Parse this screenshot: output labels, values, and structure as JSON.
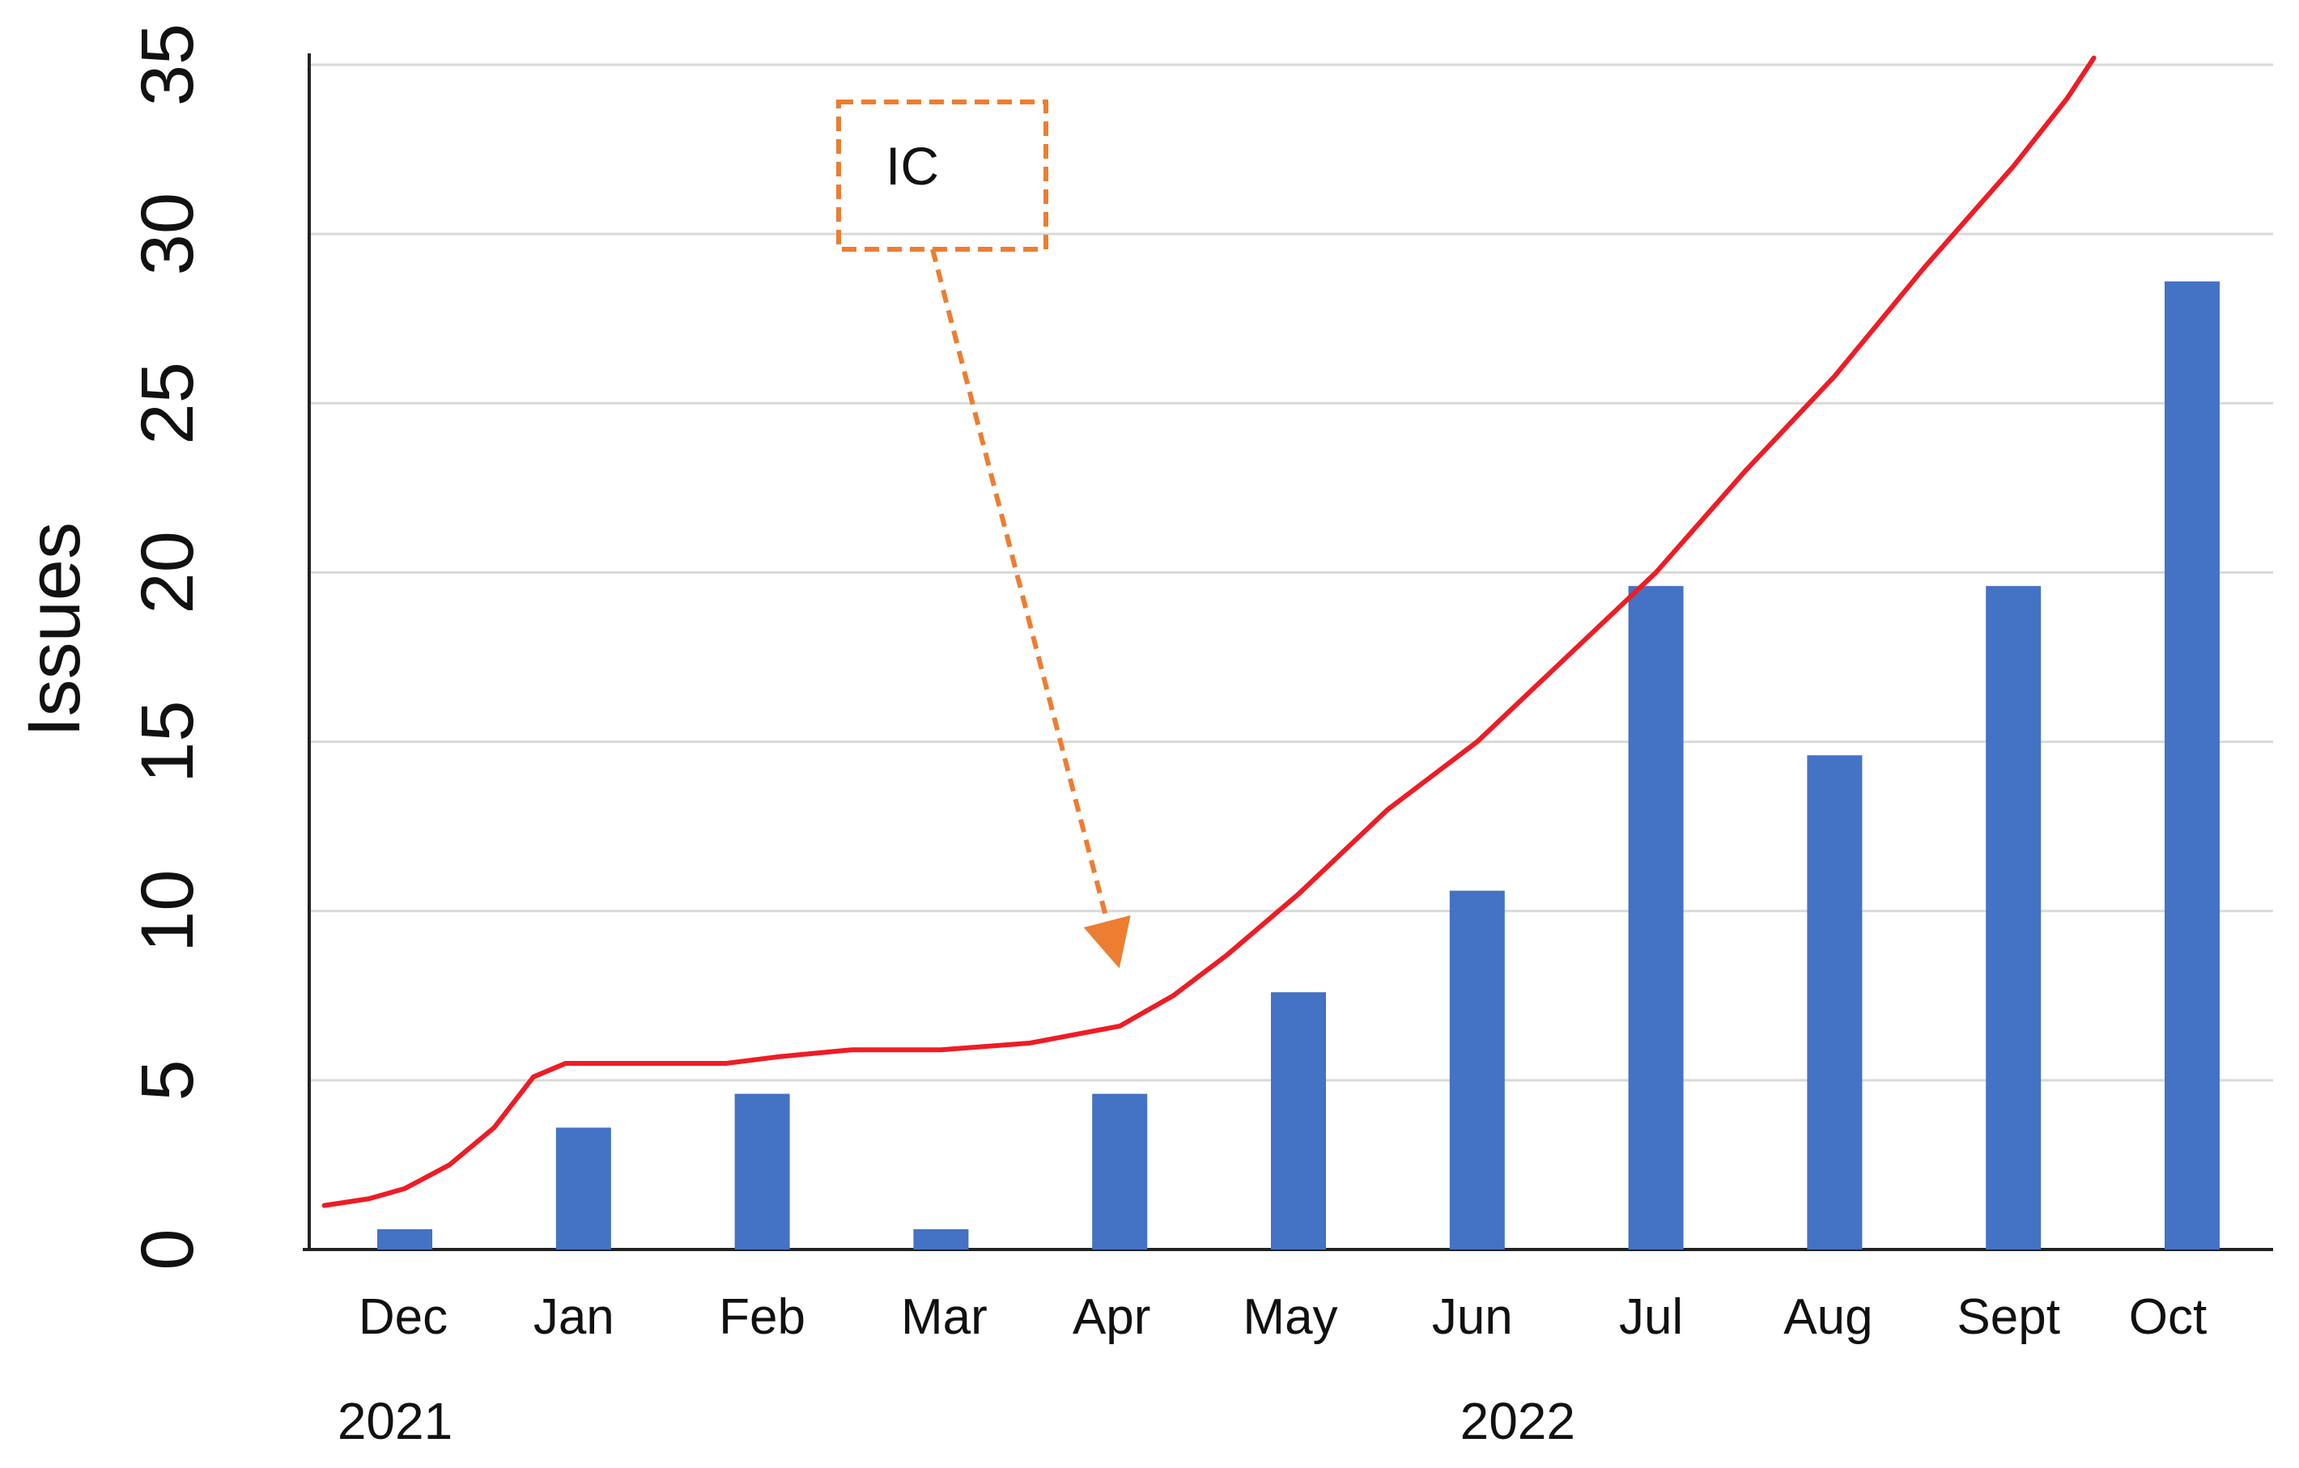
{
  "chart_data": {
    "type": "bar",
    "title": "",
    "xlabel": "",
    "ylabel": "Issues",
    "ylim": [
      0,
      35
    ],
    "y_ticks": [
      0,
      5,
      10,
      15,
      20,
      25,
      30,
      35
    ],
    "categories": [
      "Dec",
      "Jan",
      "Feb",
      "Mar",
      "Apr",
      "May",
      "Jun",
      "Jul",
      "Aug",
      "Sept",
      "Oct"
    ],
    "year_labels": [
      {
        "label": "2021",
        "category": "Dec"
      },
      {
        "label": "2022",
        "category": "Jun"
      }
    ],
    "series": [
      {
        "type": "bar",
        "color": "#4472C4",
        "values": [
          0.6,
          3.6,
          4.6,
          0.6,
          4.6,
          7.6,
          10.6,
          19.6,
          14.6,
          19.6,
          28.6
        ]
      },
      {
        "type": "line",
        "color": "#EE1C25",
        "points": [
          {
            "x": -0.45,
            "y": 1.3
          },
          {
            "x": -0.2,
            "y": 1.5
          },
          {
            "x": 0.0,
            "y": 1.8
          },
          {
            "x": 0.25,
            "y": 2.5
          },
          {
            "x": 0.5,
            "y": 3.6
          },
          {
            "x": 0.72,
            "y": 5.1
          },
          {
            "x": 0.9,
            "y": 5.5
          },
          {
            "x": 1.2,
            "y": 5.5
          },
          {
            "x": 1.5,
            "y": 5.5
          },
          {
            "x": 1.8,
            "y": 5.5
          },
          {
            "x": 2.1,
            "y": 5.7
          },
          {
            "x": 2.5,
            "y": 5.9
          },
          {
            "x": 3.0,
            "y": 5.9
          },
          {
            "x": 3.5,
            "y": 6.1
          },
          {
            "x": 4.0,
            "y": 6.6
          },
          {
            "x": 4.3,
            "y": 7.5
          },
          {
            "x": 4.6,
            "y": 8.7
          },
          {
            "x": 5.0,
            "y": 10.5
          },
          {
            "x": 5.5,
            "y": 13.0
          },
          {
            "x": 6.0,
            "y": 15.0
          },
          {
            "x": 6.5,
            "y": 17.5
          },
          {
            "x": 7.0,
            "y": 20.0
          },
          {
            "x": 7.5,
            "y": 23.0
          },
          {
            "x": 8.0,
            "y": 25.8
          },
          {
            "x": 8.5,
            "y": 29.0
          },
          {
            "x": 9.0,
            "y": 32.0
          },
          {
            "x": 9.3,
            "y": 34.0
          },
          {
            "x": 9.45,
            "y": 35.2
          }
        ]
      }
    ],
    "annotations": [
      {
        "label": "IC",
        "border_color": "#ED7D31",
        "arrow_color": "#ED7D31",
        "target_category": "Apr",
        "target_value": 9
      }
    ],
    "grid": true,
    "legend": "none"
  }
}
